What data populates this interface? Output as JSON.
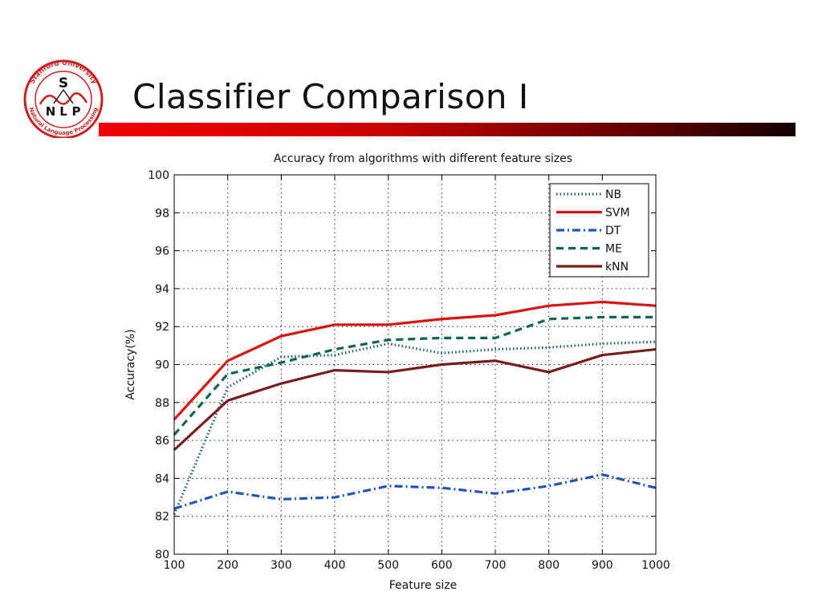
{
  "slide": {
    "title": "Classifier Comparison  I",
    "logo": {
      "ring_text_top": "Stanford University",
      "ring_text_bottom": "Natural Language Processing",
      "letters": [
        "S",
        "N",
        "L",
        "P"
      ],
      "color": "#cc1f1f"
    },
    "accent_color": "#e00000"
  },
  "chart_data": {
    "type": "line",
    "title": "Accuracy from algorithms with different feature sizes",
    "xlabel": "Feature size",
    "ylabel": "Accuracy(%)",
    "x": [
      100,
      200,
      300,
      400,
      500,
      600,
      700,
      800,
      900,
      1000
    ],
    "xlim": [
      100,
      1000
    ],
    "ylim": [
      80,
      100
    ],
    "xticks": [
      "100",
      "200",
      "300",
      "400",
      "500",
      "600",
      "700",
      "800",
      "900",
      "1000"
    ],
    "yticks": [
      "80",
      "82",
      "84",
      "86",
      "88",
      "90",
      "92",
      "94",
      "96",
      "98",
      "100"
    ],
    "grid": true,
    "legend_position": "top-right",
    "series": [
      {
        "name": "NB",
        "color": "#1a5f7a",
        "style": "dotted",
        "values": [
          82.1,
          88.8,
          90.4,
          90.5,
          91.1,
          90.6,
          90.8,
          90.9,
          91.1,
          91.2
        ]
      },
      {
        "name": "SVM",
        "color": "#dd1111",
        "style": "solid",
        "values": [
          87.1,
          90.2,
          91.5,
          92.1,
          92.1,
          92.4,
          92.6,
          93.1,
          93.3,
          93.1
        ]
      },
      {
        "name": "DT",
        "color": "#2255bb",
        "style": "dashdot",
        "values": [
          82.4,
          83.3,
          82.9,
          83.0,
          83.6,
          83.5,
          83.2,
          83.6,
          84.2,
          83.5
        ]
      },
      {
        "name": "ME",
        "color": "#0e6650",
        "style": "dashed",
        "values": [
          86.3,
          89.5,
          90.1,
          90.8,
          91.3,
          91.4,
          91.4,
          92.4,
          92.5,
          92.5
        ]
      },
      {
        "name": "kNN",
        "color": "#7a1c1c",
        "style": "solid",
        "values": [
          85.5,
          88.1,
          89.0,
          89.7,
          89.6,
          90.0,
          90.2,
          89.6,
          90.5,
          90.8
        ]
      }
    ]
  }
}
